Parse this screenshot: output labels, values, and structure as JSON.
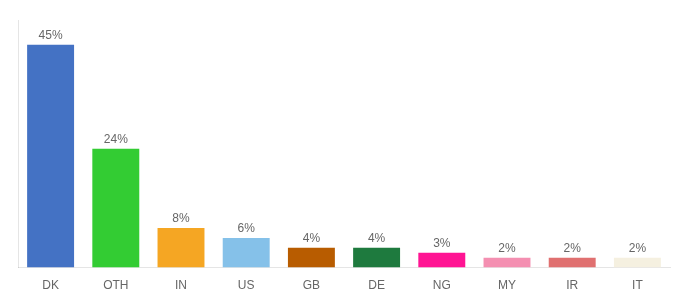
{
  "chart_data": {
    "type": "bar",
    "categories": [
      "DK",
      "OTH",
      "IN",
      "US",
      "GB",
      "DE",
      "NG",
      "MY",
      "IR",
      "IT"
    ],
    "values": [
      45,
      24,
      8,
      6,
      4,
      4,
      3,
      2,
      2,
      2
    ],
    "value_labels": [
      "45%",
      "24%",
      "8%",
      "6%",
      "4%",
      "4%",
      "3%",
      "2%",
      "2%",
      "2%"
    ],
    "colors": [
      "#4472c4",
      "#33cc33",
      "#f5a623",
      "#85c1e9",
      "#b85c00",
      "#1e7a3e",
      "#ff1493",
      "#f48fb1",
      "#e07070",
      "#f5f0e0"
    ],
    "ylim": [
      0,
      50
    ],
    "grid": false,
    "data_labels": true,
    "tick_labels": "x"
  }
}
